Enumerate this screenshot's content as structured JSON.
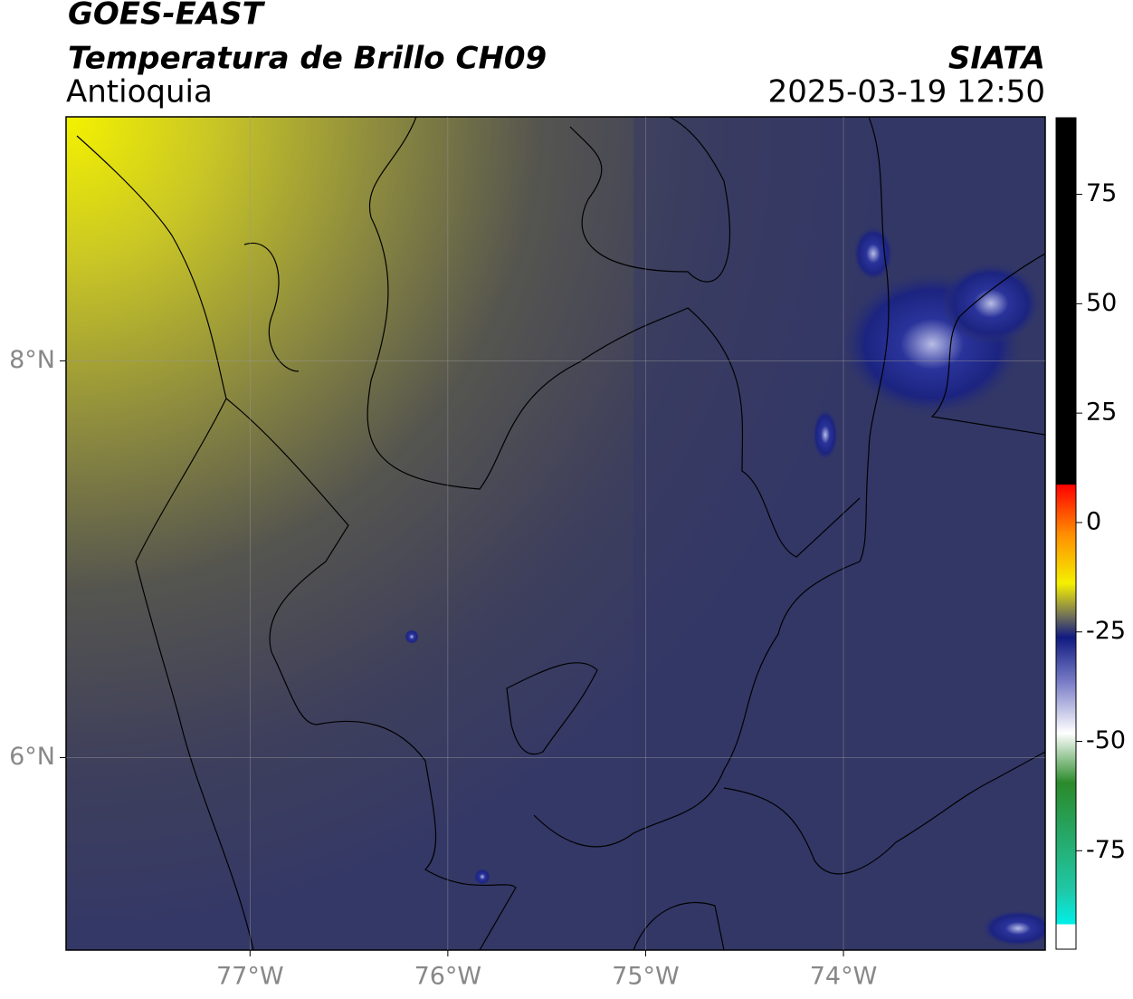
{
  "header": {
    "title": "GOES-EAST",
    "subtitle": "Temperatura de Brillo CH09",
    "region": "Antioquia",
    "source": "SIATA",
    "timestamp": "2025-03-19 12:50"
  },
  "map": {
    "xlim": [
      -77.93,
      -72.98
    ],
    "ylim": [
      5.03,
      9.23
    ],
    "xticks": [
      {
        "value": -77,
        "label": "77°W"
      },
      {
        "value": -76,
        "label": "76°W"
      },
      {
        "value": -75,
        "label": "75°W"
      },
      {
        "value": -74,
        "label": "74°W"
      }
    ],
    "yticks": [
      {
        "value": 6,
        "label": "6°N"
      },
      {
        "value": 8,
        "label": "8°N"
      }
    ],
    "grid": true
  },
  "colorbar": {
    "lim": [
      -97.5,
      92.5
    ],
    "ticks": [
      75,
      50,
      25,
      0,
      -25,
      -50,
      -75
    ]
  }
}
